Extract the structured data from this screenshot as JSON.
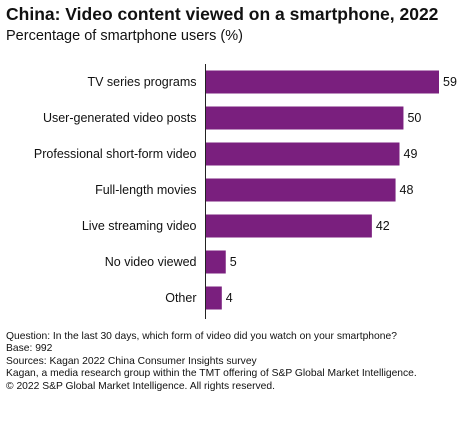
{
  "chart_data": {
    "type": "bar",
    "orientation": "horizontal",
    "title": "China: Video content viewed on a smartphone, 2022",
    "subtitle": "Percentage of smartphone users (%)",
    "categories": [
      "TV series programs",
      "User-generated video posts",
      "Professional short-form video",
      "Full-length movies",
      "Live streaming video",
      "No video viewed",
      "Other"
    ],
    "values": [
      59,
      50,
      49,
      48,
      42,
      5,
      4
    ],
    "data_labels": [
      "59",
      "50",
      "49",
      "48",
      "42",
      "5",
      "4"
    ],
    "bar_color": "#7a1f7e",
    "grid": false,
    "legend": "none"
  },
  "footnotes": {
    "question": "Question: In the last 30 days, which form of video did you watch on your smartphone?",
    "base": "Base: 992",
    "sources": "Sources: Kagan 2022 China Consumer Insights survey",
    "kagan": "Kagan, a media research group within the TMT offering of S&P Global Market Intelligence.",
    "copyright": "© 2022 S&P Global Market Intelligence. All rights reserved."
  }
}
